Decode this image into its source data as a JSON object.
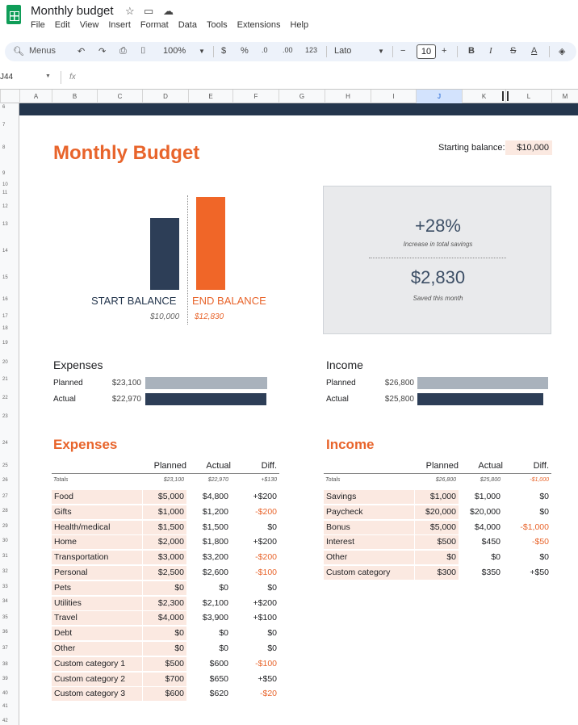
{
  "window": {
    "doc_title": "Monthly budget",
    "menu": [
      "File",
      "Edit",
      "View",
      "Insert",
      "Format",
      "Data",
      "Tools",
      "Extensions",
      "Help"
    ]
  },
  "toolbar": {
    "menus_label": "Menus",
    "zoom": "100%",
    "currency": "$",
    "percent": "%",
    "dec_decrease": ".0",
    "dec_increase": ".00",
    "number_format": "123",
    "font": "Lato",
    "font_size": "10"
  },
  "formula_bar": {
    "name_box": "J44",
    "fx": "fx"
  },
  "columns": [
    "A",
    "B",
    "C",
    "D",
    "E",
    "F",
    "G",
    "H",
    "I",
    "J",
    "K",
    "L",
    "M"
  ],
  "selected_column": "J",
  "rows": [
    "6",
    "7",
    "8",
    "9",
    "10",
    "11",
    "12",
    "13",
    "14",
    "15",
    "16",
    "17",
    "18",
    "19",
    "20",
    "21",
    "22",
    "23",
    "24",
    "25",
    "26",
    "27",
    "28",
    "29",
    "30",
    "31",
    "32",
    "33",
    "34",
    "35",
    "36",
    "37",
    "38",
    "39",
    "40",
    "41",
    "42",
    "43"
  ],
  "budget": {
    "title": "Monthly Budget",
    "starting_balance_label": "Starting balance:",
    "starting_balance_value": "$10,000",
    "start_balance_label": "START BALANCE",
    "start_balance_value": "$10,000",
    "end_balance_label": "END BALANCE",
    "end_balance_value": "$12,830",
    "increase_pct": "+28%",
    "increase_caption": "Increase in total savings",
    "saved_amount": "$2,830",
    "saved_caption": "Saved this month",
    "expenses_chart": {
      "title": "Expenses",
      "planned_label": "Planned",
      "planned_value": "$23,100",
      "planned_ratio": 0.93,
      "actual_label": "Actual",
      "actual_value": "$22,970",
      "actual_ratio": 0.925
    },
    "income_chart": {
      "title": "Income",
      "planned_label": "Planned",
      "planned_value": "$26,800",
      "planned_ratio": 1.0,
      "actual_label": "Actual",
      "actual_value": "$25,800",
      "actual_ratio": 0.963
    }
  },
  "expenses_table": {
    "title": "Expenses",
    "headers": {
      "planned": "Planned",
      "actual": "Actual",
      "diff": "Diff."
    },
    "totals": {
      "label": "Totals",
      "planned": "$23,100",
      "actual": "$22,970",
      "diff": "+$130"
    },
    "rows": [
      {
        "category": "Food",
        "planned": "$5,000",
        "actual": "$4,800",
        "diff": "+$200"
      },
      {
        "category": "Gifts",
        "planned": "$1,000",
        "actual": "$1,200",
        "diff": "-$200"
      },
      {
        "category": "Health/medical",
        "planned": "$1,500",
        "actual": "$1,500",
        "diff": "$0"
      },
      {
        "category": "Home",
        "planned": "$2,000",
        "actual": "$1,800",
        "diff": "+$200"
      },
      {
        "category": "Transportation",
        "planned": "$3,000",
        "actual": "$3,200",
        "diff": "-$200"
      },
      {
        "category": "Personal",
        "planned": "$2,500",
        "actual": "$2,600",
        "diff": "-$100"
      },
      {
        "category": "Pets",
        "planned": "$0",
        "actual": "$0",
        "diff": "$0"
      },
      {
        "category": "Utilities",
        "planned": "$2,300",
        "actual": "$2,100",
        "diff": "+$200"
      },
      {
        "category": "Travel",
        "planned": "$4,000",
        "actual": "$3,900",
        "diff": "+$100"
      },
      {
        "category": "Debt",
        "planned": "$0",
        "actual": "$0",
        "diff": "$0"
      },
      {
        "category": "Other",
        "planned": "$0",
        "actual": "$0",
        "diff": "$0"
      },
      {
        "category": "Custom category 1",
        "planned": "$500",
        "actual": "$600",
        "diff": "-$100"
      },
      {
        "category": "Custom category 2",
        "planned": "$700",
        "actual": "$650",
        "diff": "+$50"
      },
      {
        "category": "Custom category 3",
        "planned": "$600",
        "actual": "$620",
        "diff": "-$20"
      }
    ]
  },
  "income_table": {
    "title": "Income",
    "headers": {
      "planned": "Planned",
      "actual": "Actual",
      "diff": "Diff."
    },
    "totals": {
      "label": "Totals",
      "planned": "$26,800",
      "actual": "$25,800",
      "diff": "-$1,000"
    },
    "rows": [
      {
        "category": "Savings",
        "planned": "$1,000",
        "actual": "$1,000",
        "diff": "$0"
      },
      {
        "category": "Paycheck",
        "planned": "$20,000",
        "actual": "$20,000",
        "diff": "$0"
      },
      {
        "category": "Bonus",
        "planned": "$5,000",
        "actual": "$4,000",
        "diff": "-$1,000"
      },
      {
        "category": "Interest",
        "planned": "$500",
        "actual": "$450",
        "diff": "-$50"
      },
      {
        "category": "Other",
        "planned": "$0",
        "actual": "$0",
        "diff": "$0"
      },
      {
        "category": "Custom category",
        "planned": "$300",
        "actual": "$350",
        "diff": "+$50"
      }
    ]
  },
  "colors": {
    "accent": "#e8642b",
    "navy": "#2d3e57",
    "planned_bar": "#a9b2bc",
    "cell_tint": "#fbe9e1"
  }
}
